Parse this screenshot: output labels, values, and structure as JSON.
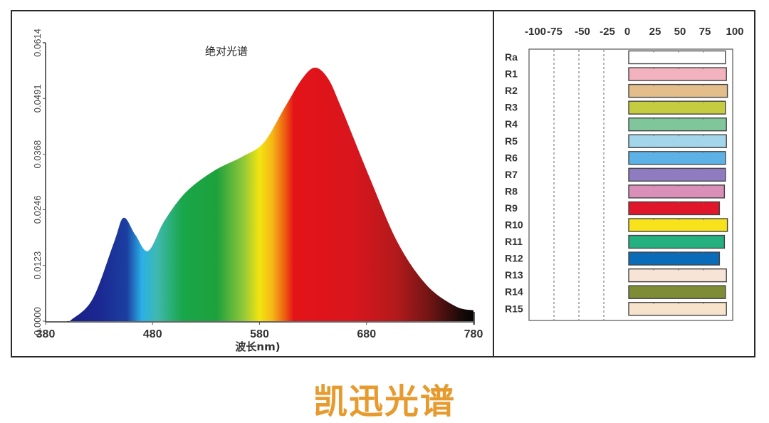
{
  "caption": "凯迅光谱",
  "chart_data": [
    {
      "type": "area",
      "title": "绝对光谱",
      "xlabel": "波长nm)",
      "ylabel": "",
      "xlim": [
        380,
        780
      ],
      "ylim": [
        0.0,
        0.0614
      ],
      "x_ticks": [
        "380",
        "480",
        "580",
        "680",
        "780"
      ],
      "y_ticks": [
        "0.0000",
        "0.0123",
        "0.0246",
        "0.0368",
        "0.0491",
        "0.0614"
      ],
      "grid": false,
      "legend": "none",
      "fill": "visible-spectrum gradient (violet→blue→cyan→green→yellow→red→black)",
      "x": [
        400,
        404,
        424,
        444,
        453,
        464,
        476,
        491,
        511,
        537,
        564,
        584,
        604,
        620,
        632,
        644,
        656,
        683,
        709,
        736,
        763,
        780
      ],
      "values": [
        0.0,
        0.0003,
        0.0049,
        0.0174,
        0.0228,
        0.019,
        0.0155,
        0.0221,
        0.0284,
        0.0331,
        0.0363,
        0.0394,
        0.0473,
        0.0535,
        0.0559,
        0.0535,
        0.0473,
        0.0316,
        0.0174,
        0.008,
        0.0033,
        0.0024
      ]
    },
    {
      "type": "bar",
      "orientation": "horizontal",
      "title": "",
      "xlim": [
        -100,
        100
      ],
      "x_ticks": [
        "-100",
        "-75",
        "-50",
        "-25",
        "0",
        "25",
        "50",
        "75",
        "100"
      ],
      "categories": [
        "Ra",
        "R1",
        "R2",
        "R3",
        "R4",
        "R5",
        "R6",
        "R7",
        "R8",
        "R9",
        "R10",
        "R11",
        "R12",
        "R13",
        "R14",
        "R15"
      ],
      "values": [
        97,
        98,
        99,
        97,
        98,
        98,
        97,
        97,
        96,
        91,
        99,
        96,
        91,
        98,
        97,
        98
      ],
      "colors": [
        "#ffffff",
        "#f2b3be",
        "#e3bd8a",
        "#c5cc40",
        "#7fc79a",
        "#a3d6ea",
        "#5cb2e6",
        "#8f7cc0",
        "#d98fb8",
        "#e0162b",
        "#f7e21c",
        "#24b07f",
        "#0a6bb8",
        "#f7e4d6",
        "#7d8c35",
        "#f7e2cc"
      ]
    }
  ]
}
